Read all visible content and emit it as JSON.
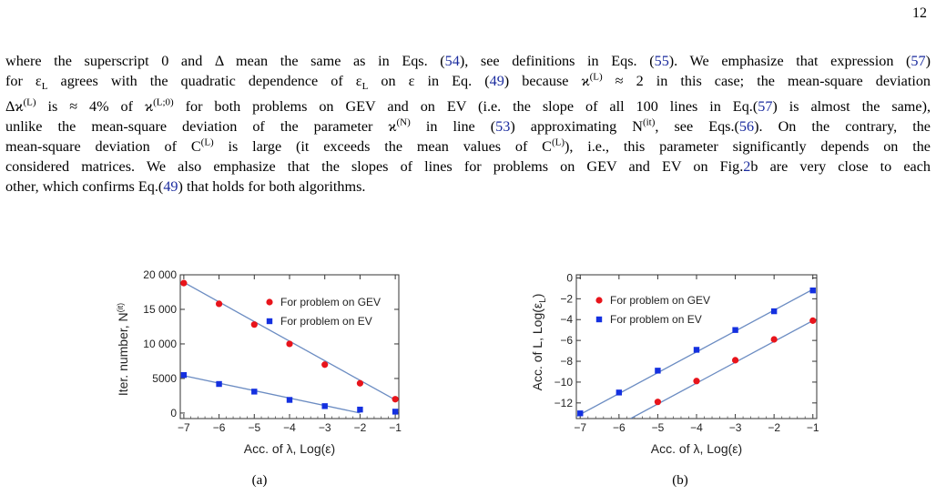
{
  "page": {
    "number": "12"
  },
  "paragraph": {
    "lines": [
      [
        "where the superscript 0 and Δ mean the same as in Eqs. (",
        {
          "ref": "54"
        },
        "), see definitions in Eqs. (",
        {
          "ref": "55"
        },
        "). We emphasize that expression (",
        {
          "ref": "57"
        },
        ")"
      ],
      [
        "for ε",
        {
          "sub": "L"
        },
        " agrees with the quadratic dependence of ε",
        {
          "sub": "L"
        },
        " on ε in Eq. (",
        {
          "ref": "49"
        },
        ") because ϰ",
        {
          "sup": "(L)"
        },
        " ≈ 2 in this case; the mean-square deviation"
      ],
      [
        "Δϰ",
        {
          "sup": "(L)"
        },
        " is ≈ 4% of ϰ",
        {
          "sup": "(L;0)"
        },
        " for both problems on GEV and on EV (i.e. the slope of all 100 lines in Eq.(",
        {
          "ref": "57"
        },
        ") is almost the same),"
      ],
      [
        "unlike the mean-square deviation of the parameter ϰ",
        {
          "sup": "(N)"
        },
        " in line (",
        {
          "ref": "53"
        },
        ") approximating N",
        {
          "sup": "(it)"
        },
        ", see Eqs.(",
        {
          "ref": "56"
        },
        "). On the contrary, the"
      ],
      [
        "mean-square deviation of C",
        {
          "sup": "(L)"
        },
        " is large (it exceeds the mean values of C",
        {
          "sup": "(L)"
        },
        "), i.e., this parameter significantly depends on the"
      ],
      [
        "considered matrices. We also emphasize that the slopes of lines for problems on GEV and EV on Fig.",
        {
          "ref": "2"
        },
        "b are very close to each"
      ],
      [
        "other, which confirms Eq.(",
        {
          "ref": "49"
        },
        ") that holds for both algorithms."
      ]
    ]
  },
  "chart_data": [
    {
      "type": "scatter",
      "caption": "(a)",
      "xlabel": "Acc. of λ, Log(ε)",
      "ylabel": "Iter. number, N",
      "ylabel_sup": "(it)",
      "xlim": [
        -7.1,
        -0.9
      ],
      "ylim": [
        -800,
        20000
      ],
      "xticks": [
        -7,
        -6,
        -5,
        -4,
        -3,
        -2,
        -1
      ],
      "xtick_labels": [
        "−7",
        "−6",
        "−5",
        "−4",
        "−3",
        "−2",
        "−1"
      ],
      "yticks": [
        0,
        5000,
        10000,
        15000,
        20000
      ],
      "ytick_labels": [
        "0",
        "5000",
        "10 000",
        "15 000",
        "20 000"
      ],
      "legend_position": "top-right",
      "series": [
        {
          "name": "For problem on GEV",
          "marker": "circle",
          "color": "#e8141b",
          "x": [
            -7,
            -6,
            -5,
            -4,
            -3,
            -2,
            -1
          ],
          "y": [
            18800,
            15800,
            12800,
            10000,
            7000,
            4300,
            2000
          ],
          "fit": [
            [
              -7,
              18900
            ],
            [
              -1,
              1900
            ]
          ]
        },
        {
          "name": "For problem on EV",
          "marker": "square",
          "color": "#1430e0",
          "x": [
            -7,
            -6,
            -5,
            -4,
            -3,
            -2,
            -1
          ],
          "y": [
            5500,
            4200,
            3100,
            1900,
            1000,
            500,
            200
          ],
          "fit": [
            [
              -7,
              5400
            ],
            [
              -2,
              0
            ]
          ]
        }
      ],
      "line_color": "#6b8cc2"
    },
    {
      "type": "scatter",
      "caption": "(b)",
      "xlabel": "Acc. of λ, Log(ε)",
      "ylabel": "Acc. of L, Log(ε",
      "ylabel_sub": "L",
      "ylabel_end": ")",
      "xlim": [
        -7.1,
        -0.9
      ],
      "ylim": [
        -13.5,
        0.3
      ],
      "xticks": [
        -7,
        -6,
        -5,
        -4,
        -3,
        -2,
        -1
      ],
      "xtick_labels": [
        "−7",
        "−6",
        "−5",
        "−4",
        "−3",
        "−2",
        "−1"
      ],
      "yticks": [
        0,
        -2,
        -4,
        -6,
        -8,
        -10,
        -12
      ],
      "ytick_labels": [
        "0",
        "−2",
        "−4",
        "−6",
        "−8",
        "−10",
        "−12"
      ],
      "legend_position": "top-left",
      "series": [
        {
          "name": "For problem on GEV",
          "marker": "circle",
          "color": "#e8141b",
          "x": [
            -5,
            -4,
            -3,
            -2,
            -1
          ],
          "y": [
            -11.9,
            -9.9,
            -7.9,
            -5.9,
            -4.1
          ],
          "fit": [
            [
              -5.7,
              -13.5
            ],
            [
              -1,
              -4.1
            ]
          ]
        },
        {
          "name": "For problem on EV",
          "marker": "square",
          "color": "#1430e0",
          "x": [
            -7,
            -6,
            -5,
            -4,
            -3,
            -2,
            -1
          ],
          "y": [
            -13.0,
            -11.0,
            -8.9,
            -6.9,
            -5.0,
            -3.2,
            -1.2
          ],
          "fit": [
            [
              -7.1,
              -13.3
            ],
            [
              -1,
              -1.1
            ]
          ]
        }
      ],
      "line_color": "#6b8cc2"
    }
  ]
}
